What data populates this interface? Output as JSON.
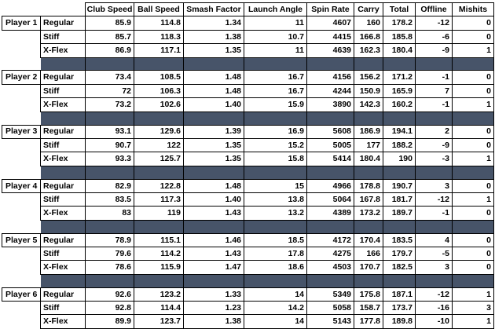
{
  "colors": {
    "separator_fill": "#475469",
    "border": "#000000",
    "background": "#ffffff",
    "text": "#000000"
  },
  "chart_data": {
    "type": "table",
    "title": "",
    "columns": [
      "Club Speed",
      "Ball Speed",
      "Smash Factor",
      "Launch Angle",
      "Spin Rate",
      "Carry",
      "Total",
      "Offline",
      "Mishits"
    ],
    "row_label_headers": [
      "",
      ""
    ],
    "groups": [
      {
        "player": "Player 1",
        "rows": [
          {
            "flex": "Regular",
            "values": [
              "85.9",
              "114.8",
              "1.34",
              "11",
              "4607",
              "160",
              "178.2",
              "-12",
              "0"
            ]
          },
          {
            "flex": "Stiff",
            "values": [
              "85.7",
              "118.3",
              "1.38",
              "10.7",
              "4415",
              "166.8",
              "185.8",
              "-6",
              "0"
            ]
          },
          {
            "flex": "X-Flex",
            "values": [
              "86.9",
              "117.1",
              "1.35",
              "11",
              "4639",
              "162.3",
              "180.4",
              "-9",
              "1"
            ]
          }
        ]
      },
      {
        "player": "Player 2",
        "rows": [
          {
            "flex": "Regular",
            "values": [
              "73.4",
              "108.5",
              "1.48",
              "16.7",
              "4156",
              "156.2",
              "171.2",
              "-1",
              "0"
            ]
          },
          {
            "flex": "Stiff",
            "values": [
              "72",
              "106.3",
              "1.48",
              "16.7",
              "4244",
              "150.9",
              "165.9",
              "7",
              "0"
            ]
          },
          {
            "flex": "X-Flex",
            "values": [
              "73.2",
              "102.6",
              "1.40",
              "15.9",
              "3890",
              "142.3",
              "160.2",
              "-1",
              "1"
            ]
          }
        ]
      },
      {
        "player": "Player 3",
        "rows": [
          {
            "flex": "Regular",
            "values": [
              "93.1",
              "129.6",
              "1.39",
              "16.9",
              "5608",
              "186.9",
              "194.1",
              "2",
              "0"
            ]
          },
          {
            "flex": "Stiff",
            "values": [
              "90.7",
              "122",
              "1.35",
              "15.2",
              "5005",
              "177",
              "188.2",
              "-9",
              "0"
            ]
          },
          {
            "flex": "X-Flex",
            "values": [
              "93.3",
              "125.7",
              "1.35",
              "15.8",
              "5414",
              "180.4",
              "190",
              "-3",
              "1"
            ]
          }
        ]
      },
      {
        "player": "Player 4",
        "rows": [
          {
            "flex": "Regular",
            "values": [
              "82.9",
              "122.8",
              "1.48",
              "15",
              "4966",
              "178.8",
              "190.7",
              "3",
              "0"
            ]
          },
          {
            "flex": "Stiff",
            "values": [
              "83.5",
              "117.3",
              "1.40",
              "13.8",
              "5064",
              "167.8",
              "181.7",
              "-12",
              "1"
            ]
          },
          {
            "flex": "X-Flex",
            "values": [
              "83",
              "119",
              "1.43",
              "13.2",
              "4389",
              "173.2",
              "189.7",
              "-1",
              "0"
            ]
          }
        ]
      },
      {
        "player": "Player 5",
        "rows": [
          {
            "flex": "Regular",
            "values": [
              "78.9",
              "115.1",
              "1.46",
              "18.5",
              "4172",
              "170.4",
              "183.5",
              "4",
              "0"
            ]
          },
          {
            "flex": "Stiff",
            "values": [
              "79.6",
              "114.2",
              "1.43",
              "17.8",
              "4275",
              "166",
              "179.7",
              "-5",
              "0"
            ]
          },
          {
            "flex": "X-Flex",
            "values": [
              "78.6",
              "115.9",
              "1.47",
              "18.6",
              "4503",
              "170.7",
              "182.5",
              "3",
              "0"
            ]
          }
        ]
      },
      {
        "player": "Player 6",
        "rows": [
          {
            "flex": "Regular",
            "values": [
              "92.6",
              "123.2",
              "1.33",
              "14",
              "5349",
              "175.8",
              "187.1",
              "-12",
              "1"
            ]
          },
          {
            "flex": "Stiff",
            "values": [
              "92.8",
              "114.4",
              "1.23",
              "14.2",
              "5058",
              "158.7",
              "173.7",
              "-16",
              "3"
            ]
          },
          {
            "flex": "X-Flex",
            "values": [
              "89.9",
              "123.7",
              "1.38",
              "14",
              "5143",
              "177.8",
              "189.8",
              "-10",
              "1"
            ]
          }
        ]
      }
    ]
  }
}
